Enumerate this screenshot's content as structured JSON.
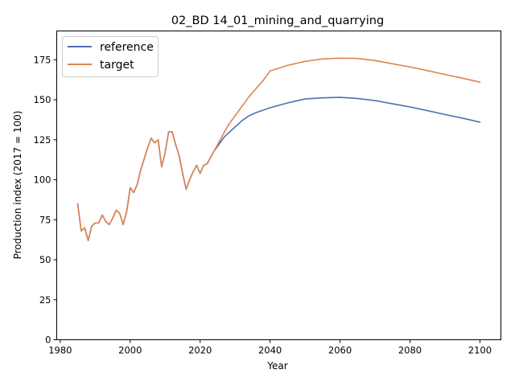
{
  "chart_data": {
    "type": "line",
    "title": "02_BD 14_01_mining_and_quarrying",
    "xlabel": "Year",
    "ylabel": "Production index (2017 = 100)",
    "xlim": [
      1979,
      2106
    ],
    "ylim": [
      0,
      193
    ],
    "xticks": [
      1980,
      2000,
      2020,
      2040,
      2060,
      2080,
      2100
    ],
    "yticks": [
      0,
      25,
      50,
      75,
      100,
      125,
      150,
      175
    ],
    "grid": false,
    "legend_position": "top-left",
    "series": [
      {
        "name": "reference",
        "color": "#4c72b0",
        "x": [
          1985,
          1986,
          1987,
          1988,
          1989,
          1990,
          1991,
          1992,
          1993,
          1994,
          1995,
          1996,
          1997,
          1998,
          1999,
          2000,
          2001,
          2002,
          2003,
          2004,
          2005,
          2006,
          2007,
          2008,
          2009,
          2010,
          2011,
          2012,
          2013,
          2014,
          2015,
          2016,
          2017,
          2018,
          2019,
          2020,
          2021,
          2022,
          2023,
          2024,
          2025,
          2026,
          2027,
          2028,
          2030,
          2032,
          2034,
          2036,
          2038,
          2040,
          2045,
          2050,
          2055,
          2060,
          2065,
          2070,
          2075,
          2080,
          2085,
          2090,
          2095,
          2100
        ],
        "values": [
          85,
          68,
          70,
          62,
          71,
          73,
          73,
          78,
          74,
          72,
          76,
          81,
          79,
          72,
          80,
          95,
          92,
          97,
          106,
          113,
          120,
          126,
          123,
          125,
          108,
          117,
          130,
          130,
          122,
          115,
          104,
          94,
          100,
          105,
          109,
          104,
          109,
          110,
          114,
          118,
          121,
          124,
          127,
          129,
          133,
          137,
          140,
          142,
          143.5,
          145,
          148,
          150.5,
          151.2,
          151.5,
          150.8,
          149.5,
          147.5,
          145.5,
          143.2,
          140.8,
          138.5,
          136
        ]
      },
      {
        "name": "target",
        "color": "#dd8452",
        "x": [
          1985,
          1986,
          1987,
          1988,
          1989,
          1990,
          1991,
          1992,
          1993,
          1994,
          1995,
          1996,
          1997,
          1998,
          1999,
          2000,
          2001,
          2002,
          2003,
          2004,
          2005,
          2006,
          2007,
          2008,
          2009,
          2010,
          2011,
          2012,
          2013,
          2014,
          2015,
          2016,
          2017,
          2018,
          2019,
          2020,
          2021,
          2022,
          2023,
          2024,
          2025,
          2026,
          2027,
          2028,
          2030,
          2032,
          2034,
          2036,
          2038,
          2040,
          2045,
          2050,
          2055,
          2060,
          2065,
          2070,
          2075,
          2080,
          2085,
          2090,
          2095,
          2100
        ],
        "values": [
          85,
          68,
          70,
          62,
          71,
          73,
          73,
          78,
          74,
          72,
          76,
          81,
          79,
          72,
          80,
          95,
          92,
          97,
          106,
          113,
          120,
          126,
          123,
          125,
          108,
          117,
          130,
          130,
          122,
          115,
          104,
          94,
          100,
          105,
          109,
          104,
          109,
          110,
          114,
          118,
          122,
          126,
          130,
          134,
          140,
          146,
          152,
          157,
          162,
          168,
          171.5,
          174,
          175.5,
          176,
          175.8,
          174.5,
          172.5,
          170.5,
          168.2,
          165.8,
          163.5,
          161
        ]
      }
    ]
  }
}
